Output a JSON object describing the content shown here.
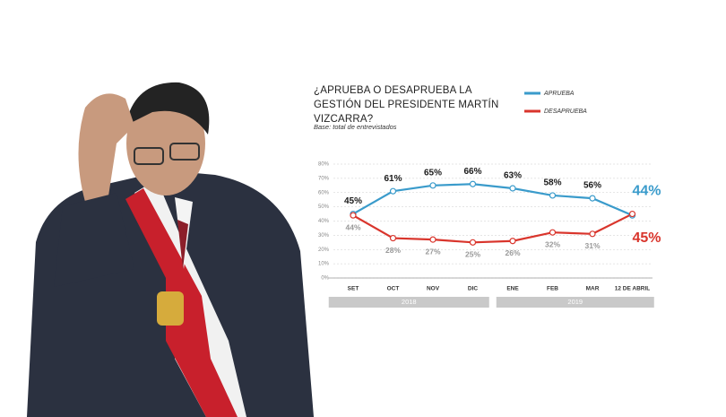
{
  "chart_data": {
    "type": "line",
    "title": "¿APRUEBA O DESAPRUEBA LA GESTIÓN DEL PRESIDENTE MARTÍN VIZCARRA?",
    "subtitle": "Base: total de entrevistados",
    "categories": [
      "SET",
      "OCT",
      "NOV",
      "DIC",
      "ENE",
      "FEB",
      "MAR",
      "12 DE ABRIL"
    ],
    "year_groups": [
      "2018",
      "2019"
    ],
    "series": [
      {
        "name": "APRUEBA",
        "color": "#3a9bcb",
        "values": [
          45,
          61,
          65,
          66,
          63,
          58,
          56,
          44
        ],
        "value_labels": [
          "45%",
          "61%",
          "65%",
          "66%",
          "63%",
          "58%",
          "56%",
          "44%"
        ]
      },
      {
        "name": "DESAPRUEBA",
        "color": "#d9352c",
        "values": [
          44,
          28,
          27,
          25,
          26,
          32,
          31,
          45
        ],
        "value_labels": [
          "44%",
          "28%",
          "27%",
          "25%",
          "26%",
          "32%",
          "31%",
          "45%"
        ]
      }
    ],
    "ylim": [
      0,
      80
    ],
    "yticks": [
      {
        "value": 0,
        "label": "0%"
      },
      {
        "value": 10,
        "label": "10%"
      },
      {
        "value": 20,
        "label": "20%"
      },
      {
        "value": 30,
        "label": "30%"
      },
      {
        "value": 40,
        "label": "40%"
      },
      {
        "value": 50,
        "label": "50%"
      },
      {
        "value": 60,
        "label": "60%"
      },
      {
        "value": 70,
        "label": "70%"
      },
      {
        "value": 80,
        "label": "80%"
      }
    ],
    "grid": true
  }
}
